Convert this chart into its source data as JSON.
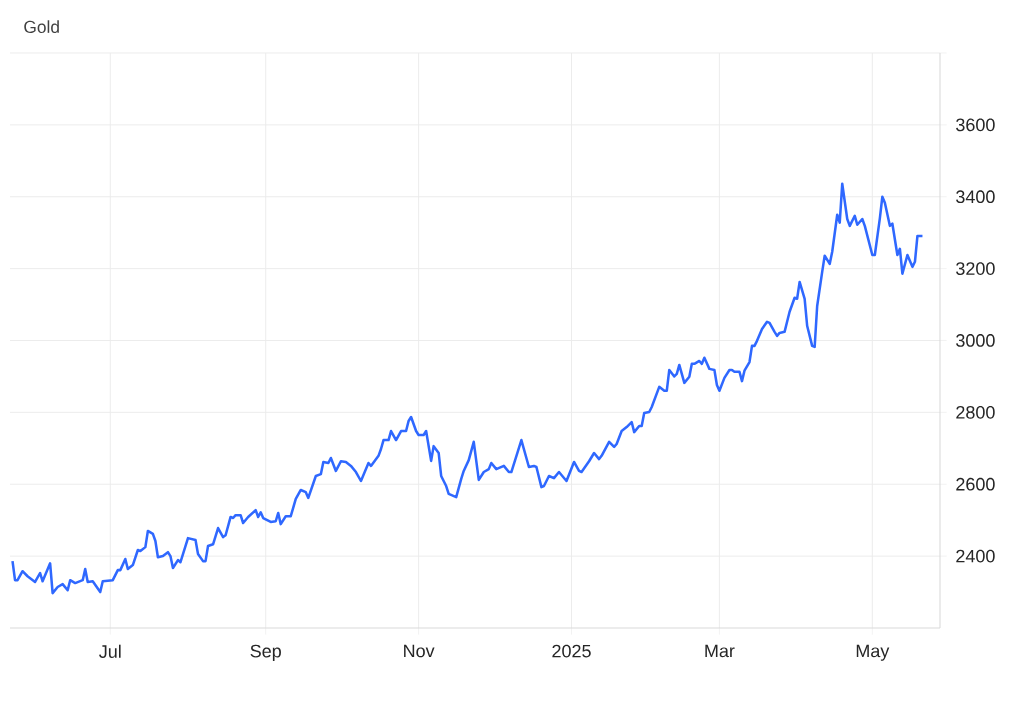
{
  "chart_data": {
    "type": "line",
    "title": "Gold",
    "color": "#2f68ff",
    "grid": true,
    "xlim": [
      "2024-05-22",
      "2025-05-28"
    ],
    "ylim": [
      2200,
      3800
    ],
    "xticks": [
      {
        "value": "2024-07-01",
        "label": "Jul"
      },
      {
        "value": "2024-09-01",
        "label": "Sep"
      },
      {
        "value": "2024-11-01",
        "label": "Nov"
      },
      {
        "value": "2025-01-01",
        "label": "2025"
      },
      {
        "value": "2025-03-01",
        "label": "Mar"
      },
      {
        "value": "2025-05-01",
        "label": "May"
      }
    ],
    "yticks": [
      2400,
      2600,
      2800,
      3000,
      3200,
      3400,
      3600,
      {
        "value": 3800,
        "label": null
      }
    ],
    "x": [
      "2024-05-23",
      "2024-05-24",
      "2024-05-25",
      "2024-05-27",
      "2024-05-29",
      "2024-06-01",
      "2024-06-03",
      "2024-06-04",
      "2024-06-07",
      "2024-06-08",
      "2024-06-10",
      "2024-06-12",
      "2024-06-14",
      "2024-06-15",
      "2024-06-17",
      "2024-06-20",
      "2024-06-21",
      "2024-06-22",
      "2024-06-24",
      "2024-06-27",
      "2024-06-28",
      "2024-07-02",
      "2024-07-04",
      "2024-07-05",
      "2024-07-07",
      "2024-07-08",
      "2024-07-10",
      "2024-07-12",
      "2024-07-13",
      "2024-07-15",
      "2024-07-16",
      "2024-07-18",
      "2024-07-19",
      "2024-07-20",
      "2024-07-22",
      "2024-07-24",
      "2024-07-25",
      "2024-07-26",
      "2024-07-28",
      "2024-07-29",
      "2024-08-01",
      "2024-08-04",
      "2024-08-05",
      "2024-08-07",
      "2024-08-08",
      "2024-08-09",
      "2024-08-11",
      "2024-08-13",
      "2024-08-15",
      "2024-08-16",
      "2024-08-18",
      "2024-08-19",
      "2024-08-20",
      "2024-08-22",
      "2024-08-23",
      "2024-08-25",
      "2024-08-28",
      "2024-08-29",
      "2024-08-30",
      "2024-08-31",
      "2024-09-03",
      "2024-09-05",
      "2024-09-06",
      "2024-09-07",
      "2024-09-09",
      "2024-09-11",
      "2024-09-13",
      "2024-09-15",
      "2024-09-17",
      "2024-09-18",
      "2024-09-21",
      "2024-09-23",
      "2024-09-24",
      "2024-09-26",
      "2024-09-27",
      "2024-09-29",
      "2024-10-01",
      "2024-10-03",
      "2024-10-05",
      "2024-10-07",
      "2024-10-09",
      "2024-10-12",
      "2024-10-13",
      "2024-10-16",
      "2024-10-17",
      "2024-10-18",
      "2024-10-20",
      "2024-10-21",
      "2024-10-23",
      "2024-10-25",
      "2024-10-27",
      "2024-10-28",
      "2024-10-29",
      "2024-10-31",
      "2024-11-01",
      "2024-11-03",
      "2024-11-04",
      "2024-11-06",
      "2024-11-07",
      "2024-11-09",
      "2024-11-10",
      "2024-11-12",
      "2024-11-13",
      "2024-11-16",
      "2024-11-18",
      "2024-11-19",
      "2024-11-21",
      "2024-11-23",
      "2024-11-25",
      "2024-11-27",
      "2024-11-29",
      "2024-11-30",
      "2024-12-02",
      "2024-12-05",
      "2024-12-07",
      "2024-12-08",
      "2024-12-12",
      "2024-12-15",
      "2024-12-17",
      "2024-12-18",
      "2024-12-20",
      "2024-12-21",
      "2024-12-23",
      "2024-12-25",
      "2024-12-27",
      "2024-12-30",
      "2025-01-02",
      "2025-01-04",
      "2025-01-05",
      "2025-01-08",
      "2025-01-10",
      "2025-01-12",
      "2025-01-13",
      "2025-01-16",
      "2025-01-18",
      "2025-01-19",
      "2025-01-21",
      "2025-01-23",
      "2025-01-25",
      "2025-01-26",
      "2025-01-28",
      "2025-01-29",
      "2025-01-30",
      "2025-02-01",
      "2025-02-02",
      "2025-02-05",
      "2025-02-07",
      "2025-02-08",
      "2025-02-09",
      "2025-02-11",
      "2025-02-12",
      "2025-02-13",
      "2025-02-15",
      "2025-02-17",
      "2025-02-18",
      "2025-02-19",
      "2025-02-21",
      "2025-02-22",
      "2025-02-23",
      "2025-02-25",
      "2025-02-27",
      "2025-02-28",
      "2025-03-01",
      "2025-03-03",
      "2025-03-05",
      "2025-03-06",
      "2025-03-07",
      "2025-03-09",
      "2025-03-10",
      "2025-03-11",
      "2025-03-13",
      "2025-03-14",
      "2025-03-15",
      "2025-03-16",
      "2025-03-18",
      "2025-03-20",
      "2025-03-21",
      "2025-03-23",
      "2025-03-24",
      "2025-03-25",
      "2025-03-27",
      "2025-03-28",
      "2025-03-29",
      "2025-03-31",
      "2025-04-01",
      "2025-04-02",
      "2025-04-04",
      "2025-04-05",
      "2025-04-07",
      "2025-04-08",
      "2025-04-09",
      "2025-04-11",
      "2025-04-12",
      "2025-04-14",
      "2025-04-15",
      "2025-04-17",
      "2025-04-18",
      "2025-04-19",
      "2025-04-21",
      "2025-04-22",
      "2025-04-24",
      "2025-04-25",
      "2025-04-27",
      "2025-04-28",
      "2025-05-01",
      "2025-05-02",
      "2025-05-04",
      "2025-05-05",
      "2025-05-06",
      "2025-05-08",
      "2025-05-09",
      "2025-05-11",
      "2025-05-12",
      "2025-05-13",
      "2025-05-15",
      "2025-05-17",
      "2025-05-18",
      "2025-05-19",
      "2025-05-21"
    ],
    "values": [
      2386,
      2333,
      2333,
      2358,
      2344,
      2328,
      2353,
      2330,
      2380,
      2297,
      2314,
      2322,
      2305,
      2333,
      2325,
      2333,
      2364,
      2328,
      2330,
      2300,
      2330,
      2333,
      2361,
      2361,
      2392,
      2364,
      2375,
      2417,
      2414,
      2425,
      2470,
      2462,
      2442,
      2397,
      2400,
      2411,
      2400,
      2367,
      2389,
      2383,
      2450,
      2445,
      2406,
      2386,
      2386,
      2428,
      2433,
      2478,
      2453,
      2458,
      2509,
      2506,
      2514,
      2514,
      2492,
      2509,
      2528,
      2509,
      2522,
      2506,
      2495,
      2497,
      2520,
      2489,
      2511,
      2511,
      2559,
      2584,
      2578,
      2562,
      2623,
      2628,
      2662,
      2659,
      2673,
      2637,
      2664,
      2662,
      2651,
      2634,
      2609,
      2659,
      2651,
      2679,
      2698,
      2723,
      2723,
      2748,
      2723,
      2748,
      2748,
      2776,
      2787,
      2748,
      2737,
      2737,
      2748,
      2665,
      2706,
      2687,
      2623,
      2595,
      2573,
      2564,
      2615,
      2637,
      2667,
      2718,
      2612,
      2634,
      2642,
      2659,
      2642,
      2651,
      2634,
      2634,
      2723,
      2648,
      2651,
      2648,
      2592,
      2595,
      2623,
      2617,
      2634,
      2609,
      2662,
      2637,
      2634,
      2664,
      2687,
      2670,
      2679,
      2718,
      2704,
      2712,
      2748,
      2759,
      2773,
      2745,
      2762,
      2762,
      2798,
      2801,
      2815,
      2871,
      2860,
      2860,
      2918,
      2900,
      2907,
      2932,
      2882,
      2899,
      2935,
      2935,
      2943,
      2935,
      2952,
      2921,
      2918,
      2876,
      2860,
      2896,
      2918,
      2918,
      2913,
      2913,
      2887,
      2916,
      2940,
      2985,
      2985,
      2999,
      3032,
      3052,
      3049,
      3024,
      3013,
      3021,
      3024,
      3052,
      3080,
      3119,
      3116,
      3163,
      3116,
      3041,
      2985,
      2982,
      3096,
      3191,
      3236,
      3213,
      3247,
      3350,
      3328,
      3436,
      3338,
      3319,
      3347,
      3322,
      3338,
      3319,
      3238,
      3238,
      3340,
      3400,
      3383,
      3319,
      3325,
      3238,
      3255,
      3186,
      3238,
      3205,
      3219,
      3291,
      3291
    ]
  }
}
